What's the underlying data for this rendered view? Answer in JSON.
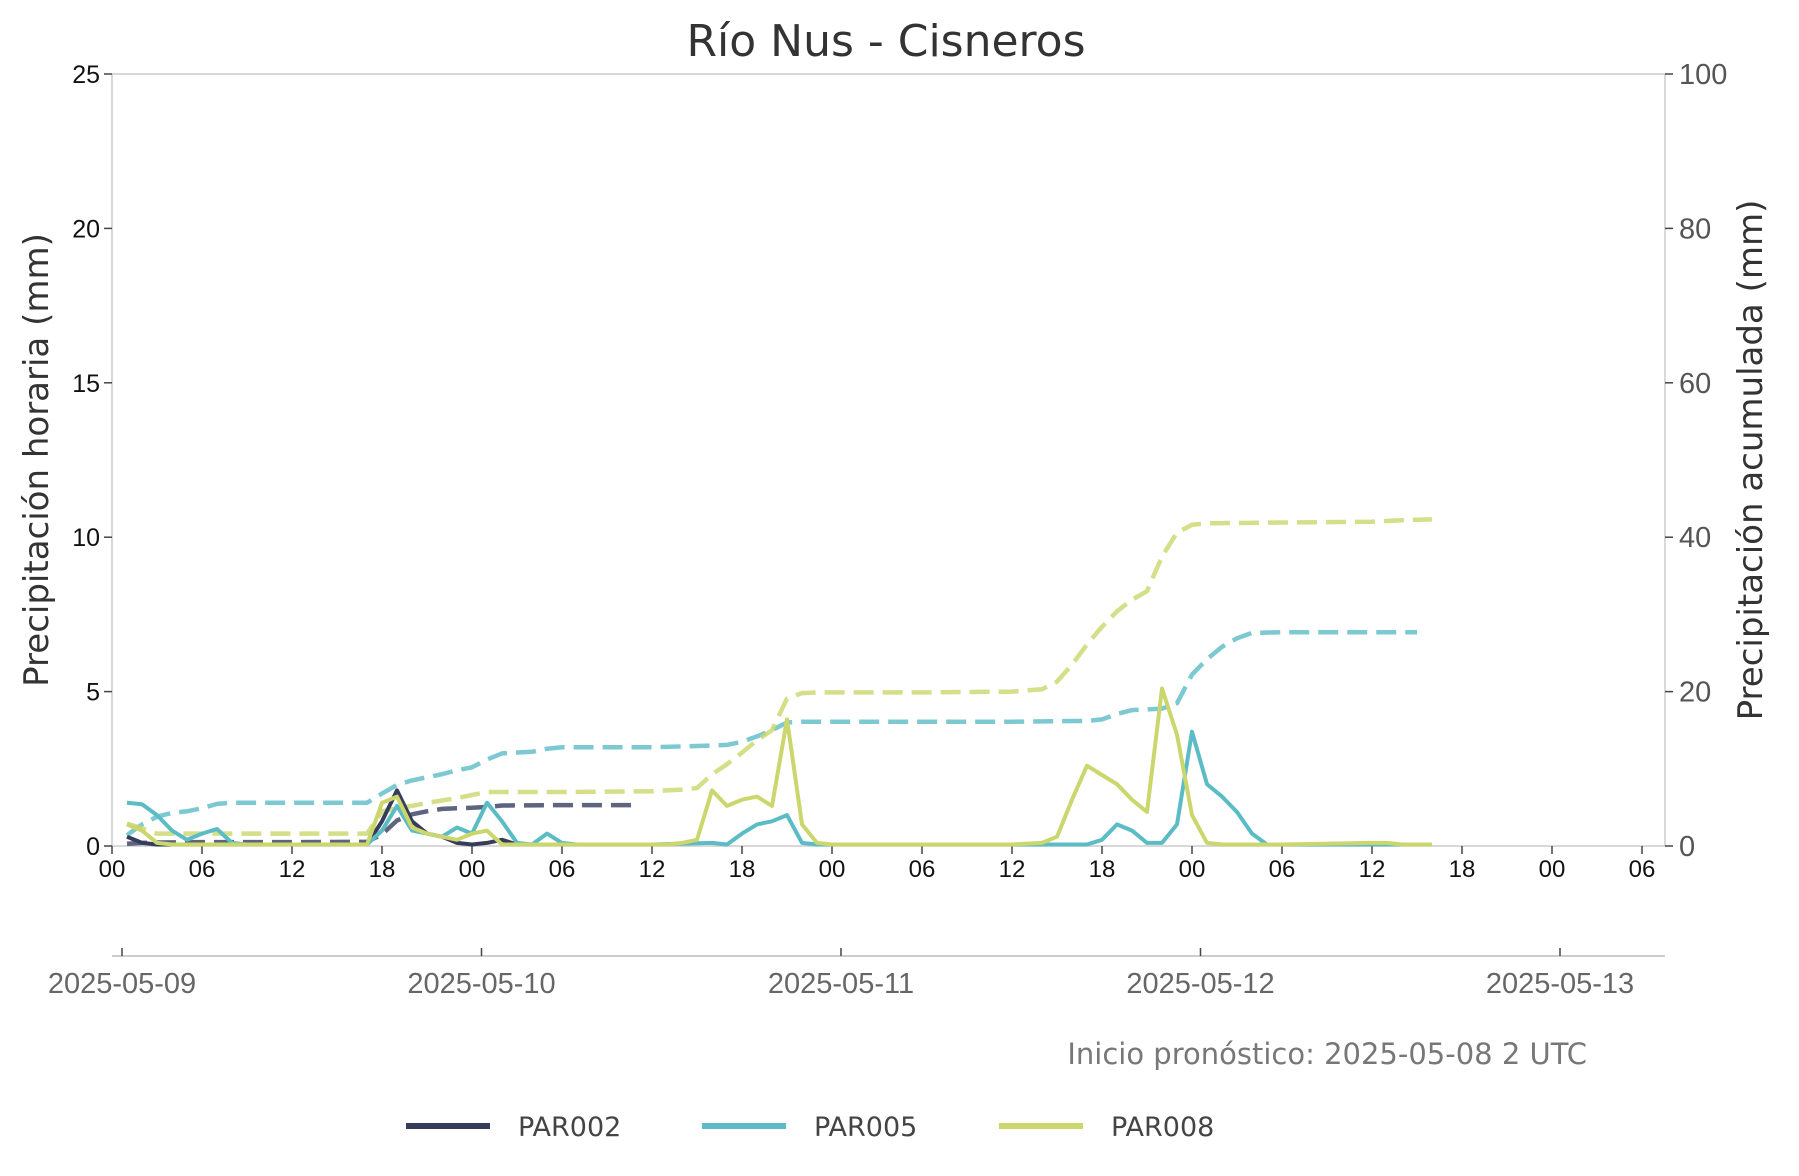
{
  "chart_data": {
    "type": "line",
    "title": "Río Nus - Cisneros",
    "ylabel_left": "Precipitación horaria (mm)",
    "ylabel_right": "Precipitación acumulada (mm)",
    "ylim_left": [
      0,
      25
    ],
    "ylim_right": [
      0,
      100
    ],
    "yticks_left": [
      "0",
      "5",
      "10",
      "15",
      "20",
      "25"
    ],
    "yticks_right": [
      "0",
      "20",
      "40",
      "60",
      "80",
      "100"
    ],
    "xlim": [
      "2025-05-09 00:00",
      "2025-05-13 06:00"
    ],
    "hour_ticks": [
      "00",
      "06",
      "12",
      "18",
      "00",
      "06",
      "12",
      "18",
      "00",
      "06",
      "12",
      "18",
      "00",
      "06",
      "12",
      "18",
      "00",
      "06"
    ],
    "date_ticks": [
      "2025-05-09",
      "2025-05-10",
      "2025-05-11",
      "2025-05-12",
      "2025-05-13"
    ],
    "note": "Inicio pronóstico: 2025-05-08 2 UTC",
    "grid": false,
    "legend_position": "bottom",
    "series": [
      {
        "name": "PAR002",
        "color": "#363d5c",
        "hourly": [
          [
            "2025-05-09 01:00",
            0.3
          ],
          [
            "2025-05-09 02:00",
            0.1
          ],
          [
            "2025-05-09 03:00",
            0.05
          ],
          [
            "2025-05-09 05:00",
            0.05
          ],
          [
            "2025-05-09 06:00",
            0.05
          ],
          [
            "2025-05-09 08:00",
            0.05
          ],
          [
            "2025-05-09 10:00",
            0.05
          ],
          [
            "2025-05-09 12:00",
            0.05
          ],
          [
            "2025-05-09 14:00",
            0.05
          ],
          [
            "2025-05-09 16:00",
            0.05
          ],
          [
            "2025-05-09 17:00",
            0.05
          ],
          [
            "2025-05-09 18:00",
            0.8
          ],
          [
            "2025-05-09 19:00",
            1.8
          ],
          [
            "2025-05-09 20:00",
            0.8
          ],
          [
            "2025-05-09 21:00",
            0.4
          ],
          [
            "2025-05-09 22:00",
            0.3
          ],
          [
            "2025-05-09 23:00",
            0.1
          ],
          [
            "2025-05-10 00:00",
            0.05
          ],
          [
            "2025-05-10 01:00",
            0.1
          ],
          [
            "2025-05-10 02:00",
            0.2
          ],
          [
            "2025-05-10 03:00",
            0.05
          ]
        ],
        "cumulative": [
          [
            "2025-05-09 01:00",
            0.3
          ],
          [
            "2025-05-09 02:00",
            0.4
          ],
          [
            "2025-05-09 03:00",
            0.45
          ],
          [
            "2025-05-09 06:00",
            0.5
          ],
          [
            "2025-05-09 12:00",
            0.5
          ],
          [
            "2025-05-09 17:00",
            0.55
          ],
          [
            "2025-05-09 18:00",
            1.5
          ],
          [
            "2025-05-09 19:00",
            3.3
          ],
          [
            "2025-05-09 20:00",
            4.1
          ],
          [
            "2025-05-09 21:00",
            4.5
          ],
          [
            "2025-05-09 22:00",
            4.8
          ],
          [
            "2025-05-09 23:00",
            4.9
          ],
          [
            "2025-05-10 00:00",
            4.95
          ],
          [
            "2025-05-10 01:00",
            5.05
          ],
          [
            "2025-05-10 02:00",
            5.25
          ],
          [
            "2025-05-10 06:00",
            5.3
          ],
          [
            "2025-05-10 11:00",
            5.3
          ]
        ]
      },
      {
        "name": "PAR005",
        "color": "#5bbcc5",
        "hourly": [
          [
            "2025-05-09 01:00",
            1.4
          ],
          [
            "2025-05-09 02:00",
            1.35
          ],
          [
            "2025-05-09 03:00",
            1.0
          ],
          [
            "2025-05-09 04:00",
            0.5
          ],
          [
            "2025-05-09 05:00",
            0.2
          ],
          [
            "2025-05-09 06:00",
            0.4
          ],
          [
            "2025-05-09 07:00",
            0.55
          ],
          [
            "2025-05-09 08:00",
            0.1
          ],
          [
            "2025-05-09 09:00",
            0.05
          ],
          [
            "2025-05-09 12:00",
            0.05
          ],
          [
            "2025-05-09 17:00",
            0.05
          ],
          [
            "2025-05-09 18:00",
            0.5
          ],
          [
            "2025-05-09 19:00",
            1.3
          ],
          [
            "2025-05-09 20:00",
            0.5
          ],
          [
            "2025-05-09 21:00",
            0.4
          ],
          [
            "2025-05-09 22:00",
            0.3
          ],
          [
            "2025-05-09 23:00",
            0.6
          ],
          [
            "2025-05-10 00:00",
            0.4
          ],
          [
            "2025-05-10 01:00",
            1.4
          ],
          [
            "2025-05-10 02:00",
            0.8
          ],
          [
            "2025-05-10 03:00",
            0.1
          ],
          [
            "2025-05-10 04:00",
            0.05
          ],
          [
            "2025-05-10 05:00",
            0.4
          ],
          [
            "2025-05-10 06:00",
            0.1
          ],
          [
            "2025-05-10 07:00",
            0.05
          ],
          [
            "2025-05-10 12:00",
            0.05
          ],
          [
            "2025-05-10 16:00",
            0.1
          ],
          [
            "2025-05-10 17:00",
            0.05
          ],
          [
            "2025-05-10 18:00",
            0.4
          ],
          [
            "2025-05-10 19:00",
            0.7
          ],
          [
            "2025-05-10 20:00",
            0.8
          ],
          [
            "2025-05-10 21:00",
            1.0
          ],
          [
            "2025-05-10 22:00",
            0.1
          ],
          [
            "2025-05-10 23:00",
            0.05
          ],
          [
            "2025-05-11 06:00",
            0.05
          ],
          [
            "2025-05-11 12:00",
            0.05
          ],
          [
            "2025-05-11 17:00",
            0.05
          ],
          [
            "2025-05-11 18:00",
            0.2
          ],
          [
            "2025-05-11 19:00",
            0.7
          ],
          [
            "2025-05-11 20:00",
            0.5
          ],
          [
            "2025-05-11 21:00",
            0.1
          ],
          [
            "2025-05-11 22:00",
            0.1
          ],
          [
            "2025-05-11 23:00",
            0.7
          ],
          [
            "2025-05-12 00:00",
            3.7
          ],
          [
            "2025-05-12 01:00",
            2.0
          ],
          [
            "2025-05-12 02:00",
            1.6
          ],
          [
            "2025-05-12 03:00",
            1.1
          ],
          [
            "2025-05-12 04:00",
            0.4
          ],
          [
            "2025-05-12 05:00",
            0.05
          ],
          [
            "2025-05-12 06:00",
            0.05
          ],
          [
            "2025-05-12 12:00",
            0.05
          ],
          [
            "2025-05-12 15:00",
            0.05
          ]
        ],
        "cumulative": [
          [
            "2025-05-09 01:00",
            1.4
          ],
          [
            "2025-05-09 02:00",
            2.8
          ],
          [
            "2025-05-09 03:00",
            3.8
          ],
          [
            "2025-05-09 04:00",
            4.3
          ],
          [
            "2025-05-09 05:00",
            4.5
          ],
          [
            "2025-05-09 06:00",
            4.9
          ],
          [
            "2025-05-09 07:00",
            5.45
          ],
          [
            "2025-05-09 08:00",
            5.6
          ],
          [
            "2025-05-09 12:00",
            5.6
          ],
          [
            "2025-05-09 17:00",
            5.6
          ],
          [
            "2025-05-09 18:00",
            6.8
          ],
          [
            "2025-05-09 19:00",
            7.9
          ],
          [
            "2025-05-09 20:00",
            8.5
          ],
          [
            "2025-05-09 21:00",
            8.9
          ],
          [
            "2025-05-09 22:00",
            9.3
          ],
          [
            "2025-05-09 23:00",
            9.8
          ],
          [
            "2025-05-10 00:00",
            10.2
          ],
          [
            "2025-05-10 01:00",
            11.2
          ],
          [
            "2025-05-10 02:00",
            12.0
          ],
          [
            "2025-05-10 04:00",
            12.2
          ],
          [
            "2025-05-10 05:00",
            12.6
          ],
          [
            "2025-05-10 06:00",
            12.8
          ],
          [
            "2025-05-10 12:00",
            12.8
          ],
          [
            "2025-05-10 16:00",
            13.0
          ],
          [
            "2025-05-10 17:00",
            13.1
          ],
          [
            "2025-05-10 18:00",
            13.5
          ],
          [
            "2025-05-10 19:00",
            14.2
          ],
          [
            "2025-05-10 20:00",
            15.0
          ],
          [
            "2025-05-10 21:00",
            16.0
          ],
          [
            "2025-05-10 22:00",
            16.1
          ],
          [
            "2025-05-11 06:00",
            16.1
          ],
          [
            "2025-05-11 12:00",
            16.1
          ],
          [
            "2025-05-11 17:00",
            16.2
          ],
          [
            "2025-05-11 18:00",
            16.4
          ],
          [
            "2025-05-11 19:00",
            17.1
          ],
          [
            "2025-05-11 20:00",
            17.6
          ],
          [
            "2025-05-11 21:00",
            17.7
          ],
          [
            "2025-05-11 22:00",
            17.8
          ],
          [
            "2025-05-11 23:00",
            18.5
          ],
          [
            "2025-05-12 00:00",
            22.2
          ],
          [
            "2025-05-12 01:00",
            24.2
          ],
          [
            "2025-05-12 02:00",
            25.8
          ],
          [
            "2025-05-12 03:00",
            26.9
          ],
          [
            "2025-05-12 04:00",
            27.6
          ],
          [
            "2025-05-12 06:00",
            27.7
          ],
          [
            "2025-05-12 12:00",
            27.7
          ],
          [
            "2025-05-12 15:00",
            27.7
          ]
        ]
      },
      {
        "name": "PAR008",
        "color": "#cbd66c",
        "hourly": [
          [
            "2025-05-09 01:00",
            0.7
          ],
          [
            "2025-05-09 02:00",
            0.5
          ],
          [
            "2025-05-09 03:00",
            0.1
          ],
          [
            "2025-05-09 04:00",
            0.05
          ],
          [
            "2025-05-09 06:00",
            0.05
          ],
          [
            "2025-05-09 12:00",
            0.05
          ],
          [
            "2025-05-09 17:00",
            0.05
          ],
          [
            "2025-05-09 18:00",
            1.4
          ],
          [
            "2025-05-09 19:00",
            1.6
          ],
          [
            "2025-05-09 20:00",
            0.6
          ],
          [
            "2025-05-09 21:00",
            0.4
          ],
          [
            "2025-05-09 22:00",
            0.3
          ],
          [
            "2025-05-09 23:00",
            0.2
          ],
          [
            "2025-05-10 00:00",
            0.4
          ],
          [
            "2025-05-10 01:00",
            0.5
          ],
          [
            "2025-05-10 02:00",
            0.05
          ],
          [
            "2025-05-10 06:00",
            0.05
          ],
          [
            "2025-05-10 12:00",
            0.05
          ],
          [
            "2025-05-10 13:00",
            0.05
          ],
          [
            "2025-05-10 14:00",
            0.1
          ],
          [
            "2025-05-10 15:00",
            0.2
          ],
          [
            "2025-05-10 16:00",
            1.8
          ],
          [
            "2025-05-10 17:00",
            1.3
          ],
          [
            "2025-05-10 18:00",
            1.5
          ],
          [
            "2025-05-10 19:00",
            1.6
          ],
          [
            "2025-05-10 20:00",
            1.3
          ],
          [
            "2025-05-10 21:00",
            4.1
          ],
          [
            "2025-05-10 22:00",
            0.7
          ],
          [
            "2025-05-10 23:00",
            0.1
          ],
          [
            "2025-05-11 00:00",
            0.05
          ],
          [
            "2025-05-11 06:00",
            0.05
          ],
          [
            "2025-05-11 12:00",
            0.05
          ],
          [
            "2025-05-11 14:00",
            0.1
          ],
          [
            "2025-05-11 15:00",
            0.3
          ],
          [
            "2025-05-11 16:00",
            1.5
          ],
          [
            "2025-05-11 17:00",
            2.6
          ],
          [
            "2025-05-11 18:00",
            2.3
          ],
          [
            "2025-05-11 19:00",
            2.0
          ],
          [
            "2025-05-11 20:00",
            1.5
          ],
          [
            "2025-05-11 21:00",
            1.1
          ],
          [
            "2025-05-11 22:00",
            5.1
          ],
          [
            "2025-05-11 23:00",
            3.6
          ],
          [
            "2025-05-12 00:00",
            1.0
          ],
          [
            "2025-05-12 01:00",
            0.1
          ],
          [
            "2025-05-12 02:00",
            0.05
          ],
          [
            "2025-05-12 06:00",
            0.05
          ],
          [
            "2025-05-12 12:00",
            0.1
          ],
          [
            "2025-05-12 13:00",
            0.1
          ],
          [
            "2025-05-12 14:00",
            0.05
          ],
          [
            "2025-05-12 16:00",
            0.05
          ]
        ],
        "cumulative": [
          [
            "2025-05-09 01:00",
            2.9
          ],
          [
            "2025-05-09 02:00",
            2.3
          ],
          [
            "2025-05-09 03:00",
            1.6
          ],
          [
            "2025-05-09 06:00",
            1.6
          ],
          [
            "2025-05-09 12:00",
            1.6
          ],
          [
            "2025-05-09 17:00",
            1.6
          ],
          [
            "2025-05-09 18:00",
            4.5
          ],
          [
            "2025-05-09 19:00",
            4.9
          ],
          [
            "2025-05-09 20:00",
            5.2
          ],
          [
            "2025-05-09 21:00",
            5.6
          ],
          [
            "2025-05-09 22:00",
            5.9
          ],
          [
            "2025-05-09 23:00",
            6.2
          ],
          [
            "2025-05-10 00:00",
            6.6
          ],
          [
            "2025-05-10 01:00",
            7.0
          ],
          [
            "2025-05-10 06:00",
            7.0
          ],
          [
            "2025-05-10 12:00",
            7.1
          ],
          [
            "2025-05-10 13:00",
            7.2
          ],
          [
            "2025-05-10 14:00",
            7.3
          ],
          [
            "2025-05-10 15:00",
            7.5
          ],
          [
            "2025-05-10 16:00",
            9.3
          ],
          [
            "2025-05-10 17:00",
            10.6
          ],
          [
            "2025-05-10 18:00",
            12.1
          ],
          [
            "2025-05-10 19:00",
            13.7
          ],
          [
            "2025-05-10 20:00",
            15.0
          ],
          [
            "2025-05-10 21:00",
            19.1
          ],
          [
            "2025-05-10 22:00",
            19.8
          ],
          [
            "2025-05-10 23:00",
            19.9
          ],
          [
            "2025-05-11 06:00",
            19.9
          ],
          [
            "2025-05-11 12:00",
            20.0
          ],
          [
            "2025-05-11 14:00",
            20.3
          ],
          [
            "2025-05-11 15:00",
            21.3
          ],
          [
            "2025-05-11 16:00",
            23.5
          ],
          [
            "2025-05-11 17:00",
            26.1
          ],
          [
            "2025-05-11 18:00",
            28.4
          ],
          [
            "2025-05-11 19:00",
            30.4
          ],
          [
            "2025-05-11 20:00",
            31.9
          ],
          [
            "2025-05-11 21:00",
            33.0
          ],
          [
            "2025-05-11 22:00",
            37.5
          ],
          [
            "2025-05-11 23:00",
            40.6
          ],
          [
            "2025-05-12 00:00",
            41.6
          ],
          [
            "2025-05-12 01:00",
            41.8
          ],
          [
            "2025-05-12 06:00",
            41.9
          ],
          [
            "2025-05-12 12:00",
            42.0
          ],
          [
            "2025-05-12 14:00",
            42.2
          ],
          [
            "2025-05-12 16:00",
            42.3
          ]
        ]
      }
    ]
  }
}
